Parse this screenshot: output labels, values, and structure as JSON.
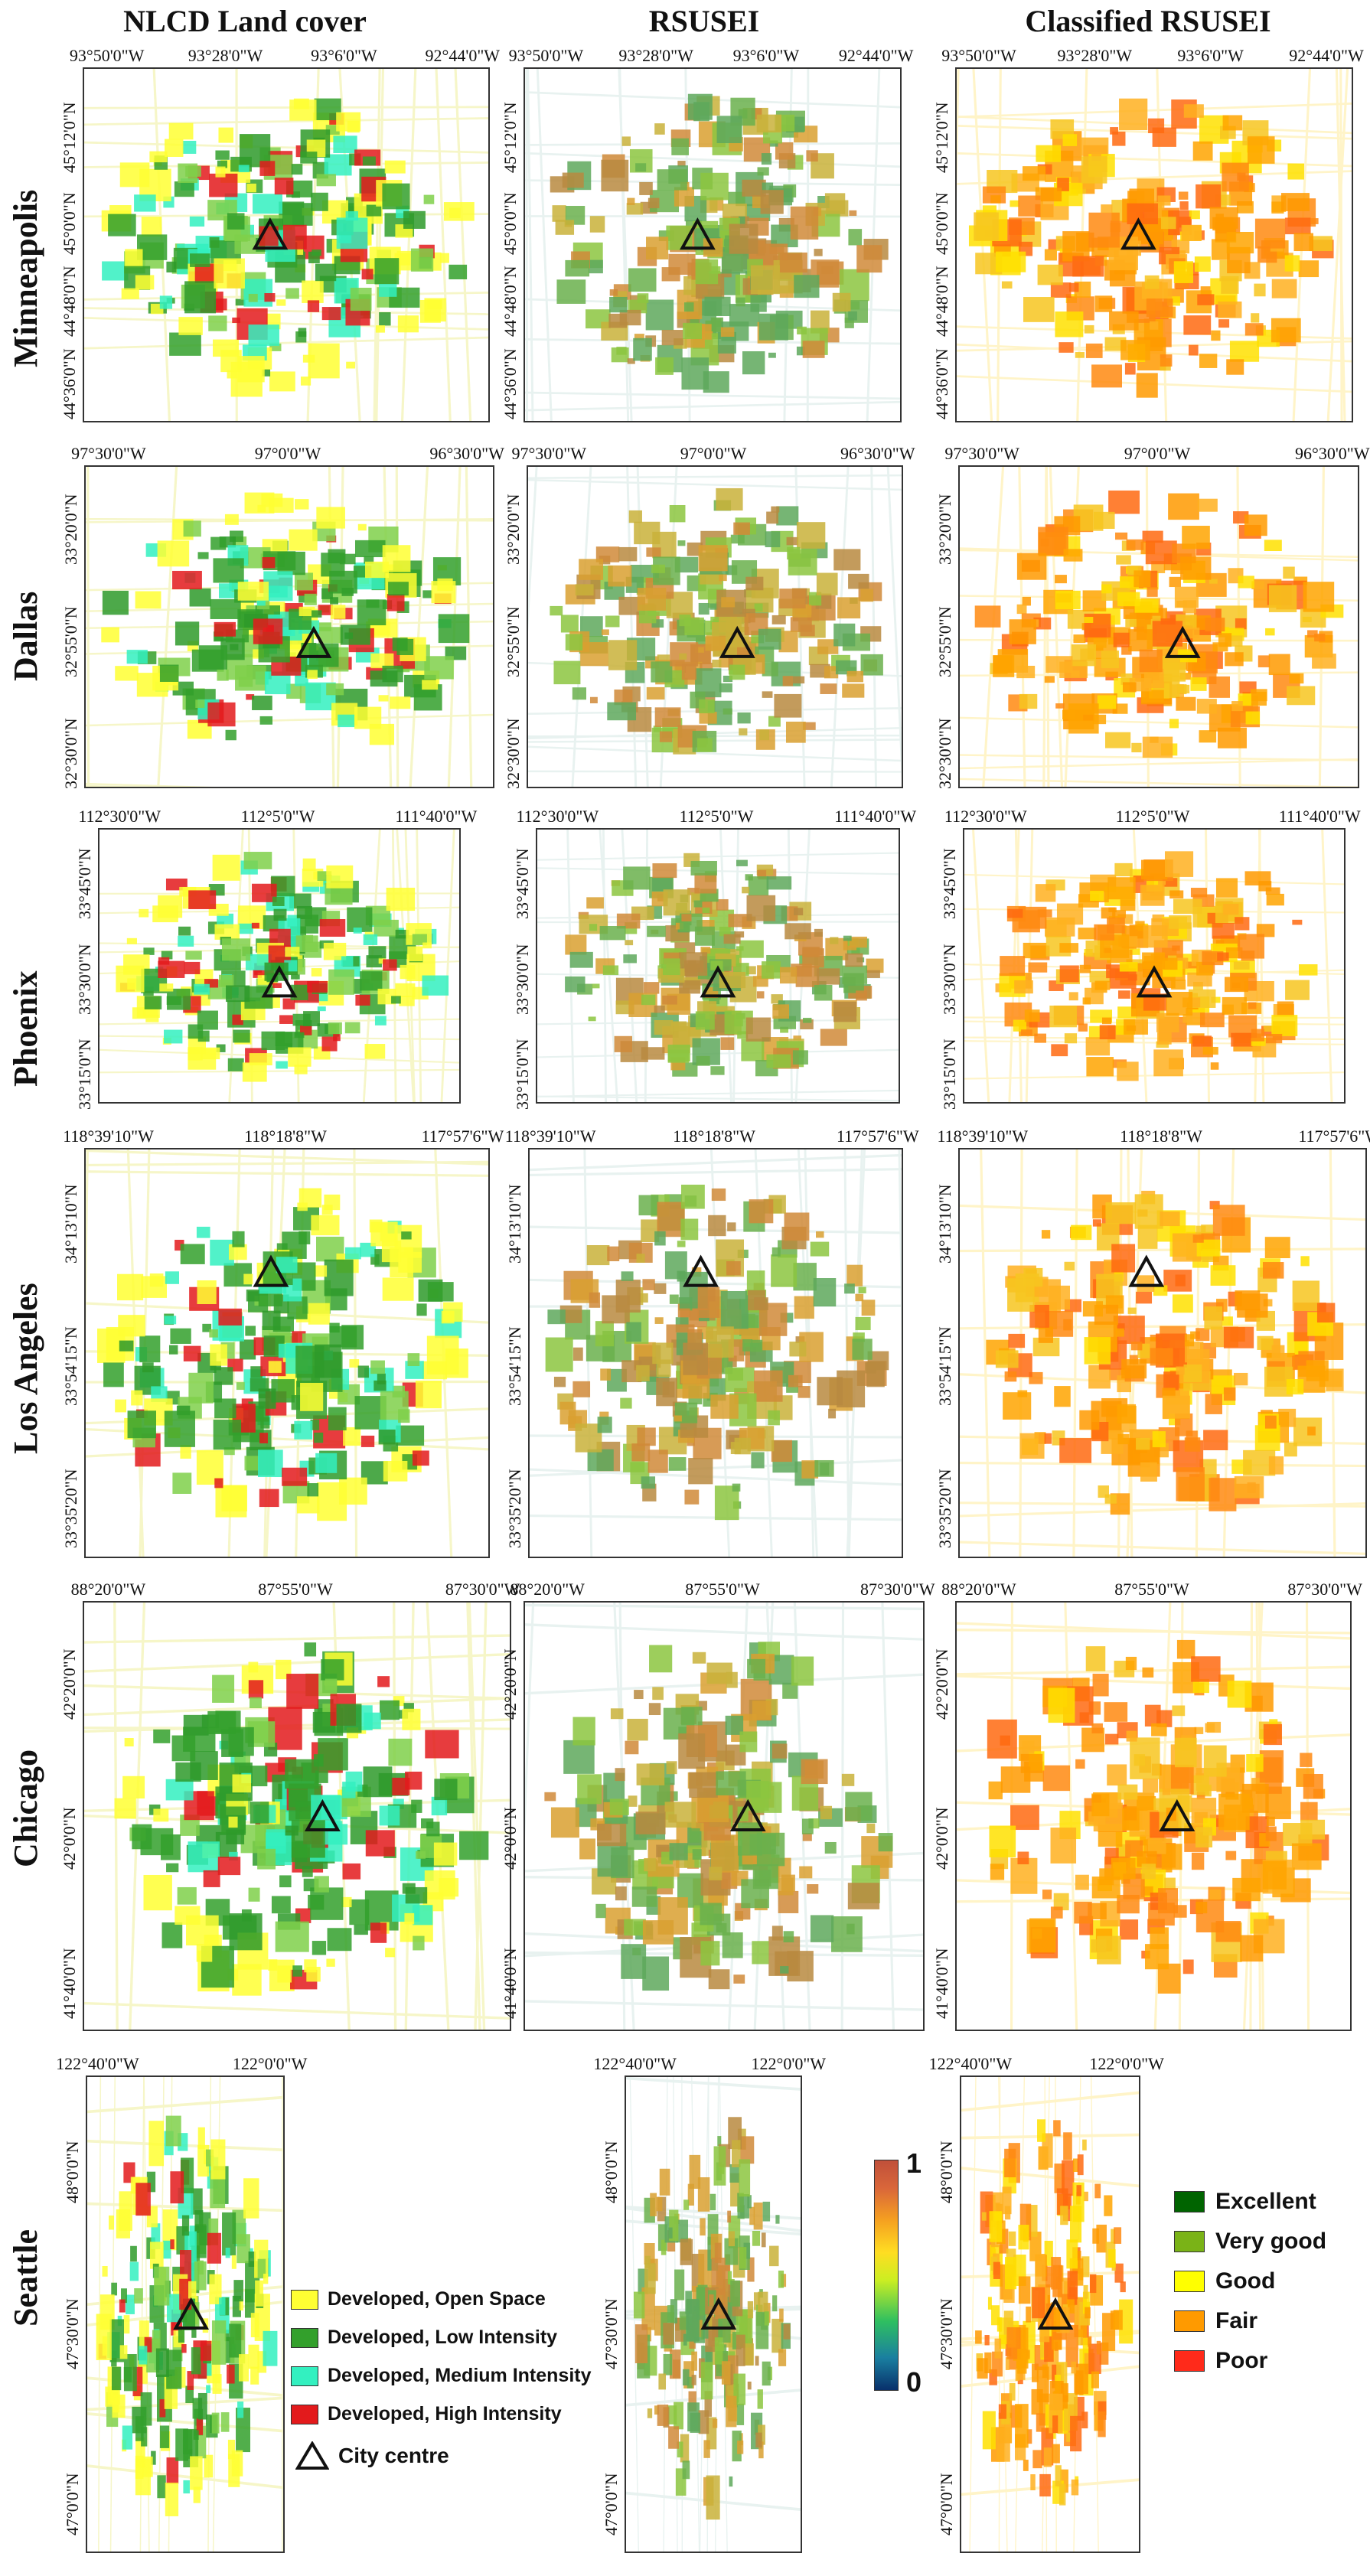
{
  "columns": [
    "NLCD Land cover",
    "RSUSEI",
    "Classified RSUSEI"
  ],
  "rows": [
    {
      "city": "Minneapolis",
      "x_ticks": [
        "93°50'0\"W",
        "93°28'0\"W",
        "93°6'0\"W",
        "92°44'0\"W"
      ],
      "y_ticks": [
        "45°12'0\"N",
        "45°0'0\"N",
        "44°48'0\"N",
        "44°36'0\"N"
      ]
    },
    {
      "city": "Dallas",
      "x_ticks": [
        "97°30'0\"W",
        "97°0'0\"W",
        "96°30'0\"W"
      ],
      "y_ticks": [
        "33°20'0\"N",
        "32°55'0\"N",
        "32°30'0\"N"
      ]
    },
    {
      "city": "Phoenix",
      "x_ticks": [
        "112°30'0\"W",
        "112°5'0\"W",
        "111°40'0\"W"
      ],
      "y_ticks": [
        "33°45'0\"N",
        "33°30'0\"N",
        "33°15'0\"N"
      ]
    },
    {
      "city": "Los Angeles",
      "x_ticks": [
        "118°39'10\"W",
        "118°18'8\"W",
        "117°57'6\"W"
      ],
      "y_ticks": [
        "34°13'10\"N",
        "33°54'15\"N",
        "33°35'20\"N"
      ]
    },
    {
      "city": "Chicago",
      "x_ticks": [
        "88°20'0\"W",
        "87°55'0\"W",
        "87°30'0\"W"
      ],
      "y_ticks": [
        "42°20'0\"N",
        "42°0'0\"N",
        "41°40'0\"N"
      ]
    },
    {
      "city": "Seattle",
      "x_ticks": [
        "122°40'0\"W",
        "122°0'0\"W"
      ],
      "y_ticks": [
        "48°0'0\"N",
        "47°30'0\"N",
        "47°0'0\"N"
      ]
    }
  ],
  "landcover_legend": [
    {
      "label": "Developed, Open Space",
      "color": "#ffff33"
    },
    {
      "label": "Developed, Low Intensity",
      "color": "#33a02c"
    },
    {
      "label": "Developed, Medium Intensity",
      "color": "#33f0c0"
    },
    {
      "label": "Developed, High Intensity",
      "color": "#e31a1c"
    },
    {
      "label": "City centre",
      "symbol": "triangle"
    }
  ],
  "colorbar": {
    "max_label": "1",
    "min_label": "0",
    "colors": [
      "#08306b",
      "#1a7fa0",
      "#2fbf60",
      "#ccee22",
      "#ffdd22",
      "#f5a020",
      "#d9663a",
      "#c0503a"
    ]
  },
  "class_legend": [
    {
      "label": "Excellent",
      "color": "#006400"
    },
    {
      "label": "Very good",
      "color": "#7ab317"
    },
    {
      "label": "Good",
      "color": "#ffff00"
    },
    {
      "label": "Fair",
      "color": "#ff9a00"
    },
    {
      "label": "Poor",
      "color": "#ff2a1a"
    }
  ]
}
